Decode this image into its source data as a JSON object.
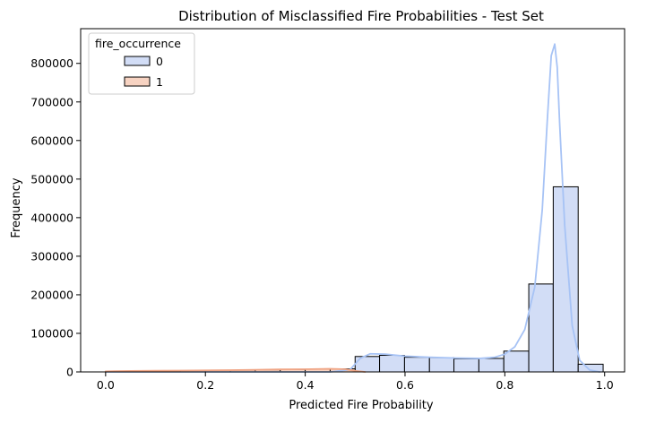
{
  "chart_data": {
    "type": "bar",
    "title": "Distribution of Misclassified Fire Probabilities - Test Set",
    "xlabel": "Predicted Fire Probability",
    "ylabel": "Frequency",
    "xlim": [
      -0.05,
      1.04
    ],
    "ylim": [
      0,
      890000
    ],
    "xticks": [
      0.0,
      0.2,
      0.4,
      0.6,
      0.8,
      1.0
    ],
    "xtick_labels": [
      "0.0",
      "0.2",
      "0.4",
      "0.6",
      "0.8",
      "1.0"
    ],
    "yticks": [
      0,
      100000,
      200000,
      300000,
      400000,
      500000,
      600000,
      700000,
      800000
    ],
    "ytick_labels": [
      "0",
      "100000",
      "200000",
      "300000",
      "400000",
      "500000",
      "600000",
      "700000",
      "800000"
    ],
    "grid": false,
    "legend": {
      "title": "fire_occurrence",
      "placement": "top-left",
      "entries": [
        "0",
        "1"
      ]
    },
    "colors": {
      "series0_fill": "#d2ddf6",
      "series0_line": "#a7c3f5",
      "series1_fill": "#f7d3c2",
      "series1_line": "#f0a585",
      "edge": "#000000"
    },
    "series": [
      {
        "name": "0",
        "bins": [
          {
            "x0": 0.5,
            "x1": 0.549,
            "value": 40000
          },
          {
            "x0": 0.549,
            "x1": 0.599,
            "value": 43000
          },
          {
            "x0": 0.599,
            "x1": 0.649,
            "value": 38000
          },
          {
            "x0": 0.649,
            "x1": 0.698,
            "value": 37000
          },
          {
            "x0": 0.698,
            "x1": 0.748,
            "value": 34000
          },
          {
            "x0": 0.748,
            "x1": 0.798,
            "value": 35000
          },
          {
            "x0": 0.798,
            "x1": 0.848,
            "value": 54000
          },
          {
            "x0": 0.848,
            "x1": 0.897,
            "value": 228000
          },
          {
            "x0": 0.897,
            "x1": 0.947,
            "value": 480000
          },
          {
            "x0": 0.947,
            "x1": 0.997,
            "value": 20000
          }
        ],
        "kde": {
          "x": [
            0.0,
            0.45,
            0.49,
            0.51,
            0.53,
            0.56,
            0.6,
            0.65,
            0.7,
            0.75,
            0.78,
            0.8,
            0.82,
            0.84,
            0.86,
            0.875,
            0.885,
            0.893,
            0.9,
            0.905,
            0.91,
            0.92,
            0.935,
            0.95,
            0.97,
            0.99
          ],
          "y": [
            0,
            0,
            6000,
            35000,
            47000,
            46000,
            41000,
            38000,
            36000,
            35000,
            38000,
            46000,
            65000,
            110000,
            220000,
            420000,
            650000,
            820000,
            850000,
            790000,
            640000,
            380000,
            120000,
            30000,
            5000,
            0
          ]
        }
      },
      {
        "name": "1",
        "bins": [
          {
            "x0": 0.0,
            "x1": 0.05,
            "value": 1500
          },
          {
            "x0": 0.05,
            "x1": 0.1,
            "value": 2500
          },
          {
            "x0": 0.1,
            "x1": 0.15,
            "value": 3000
          },
          {
            "x0": 0.15,
            "x1": 0.2,
            "value": 3500
          },
          {
            "x0": 0.2,
            "x1": 0.25,
            "value": 4000
          },
          {
            "x0": 0.25,
            "x1": 0.3,
            "value": 4500
          },
          {
            "x0": 0.3,
            "x1": 0.35,
            "value": 5500
          },
          {
            "x0": 0.35,
            "x1": 0.4,
            "value": 6500
          },
          {
            "x0": 0.4,
            "x1": 0.45,
            "value": 7000
          },
          {
            "x0": 0.45,
            "x1": 0.5,
            "value": 8000
          }
        ],
        "kde": {
          "x": [
            0.0,
            0.05,
            0.1,
            0.15,
            0.2,
            0.25,
            0.3,
            0.35,
            0.4,
            0.45,
            0.48,
            0.5,
            0.52
          ],
          "y": [
            1500,
            2500,
            3000,
            3500,
            4000,
            4500,
            5500,
            6500,
            7000,
            8000,
            7000,
            3000,
            0
          ]
        }
      }
    ]
  }
}
